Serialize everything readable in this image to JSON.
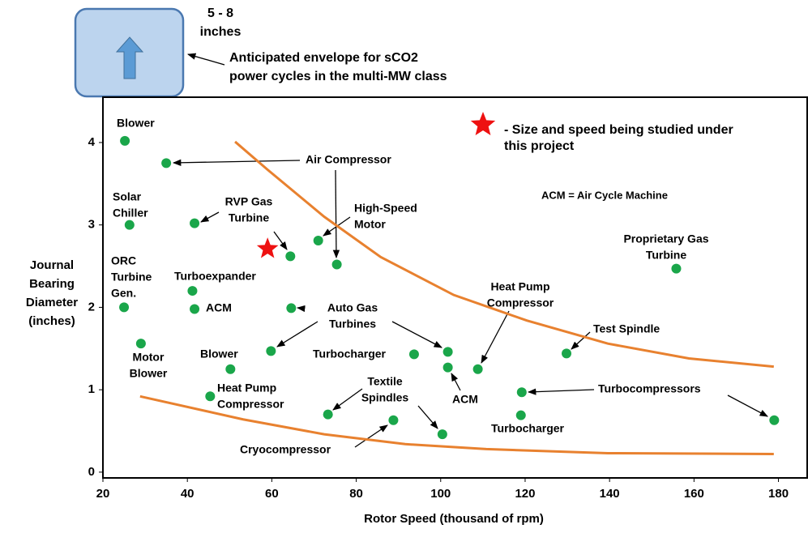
{
  "chart_data": {
    "type": "scatter",
    "x_label": "Rotor Speed (thousand of rpm)",
    "y_label": [
      "Journal",
      "Bearing",
      "Diameter",
      "(inches)"
    ],
    "xlim": [
      20,
      187
    ],
    "ylim": [
      -0.07,
      4.55
    ],
    "xticks": [
      20,
      40,
      60,
      80,
      100,
      120,
      140,
      160,
      180
    ],
    "yticks": [
      0,
      1,
      2,
      3,
      4
    ],
    "grid": false,
    "point_color": "#1aa64a",
    "x": [
      25.2,
      35,
      26.3,
      41.7,
      25,
      41.2,
      41.7,
      29,
      50.2,
      45.4,
      59.8,
      64.6,
      64.4,
      71,
      75.4,
      73.3,
      88.8,
      100.4,
      93.7,
      101.7,
      101.7,
      108.8,
      119.2,
      119,
      129.8,
      155.8,
      179
    ],
    "y": [
      4.02,
      3.75,
      3.0,
      3.02,
      2.0,
      2.2,
      1.98,
      1.56,
      1.25,
      0.92,
      1.47,
      1.99,
      2.62,
      2.81,
      2.52,
      0.7,
      0.63,
      0.46,
      1.43,
      1.46,
      1.27,
      1.25,
      0.97,
      0.69,
      1.44,
      2.47,
      0.63
    ],
    "star": {
      "x": 59,
      "y": 2.71,
      "color": "#ee1111"
    },
    "curves": [
      {
        "color": "#e8812f",
        "x": [
          51.3,
          59,
          72.4,
          85.8,
          103.1,
          120.4,
          139.6,
          158.8,
          178.9
        ],
        "y": [
          4.01,
          3.67,
          3.1,
          2.61,
          2.15,
          1.84,
          1.56,
          1.38,
          1.28
        ]
      },
      {
        "color": "#e8812f",
        "x": [
          28.8,
          53.2,
          72.4,
          91.6,
          110.8,
          139.6,
          178.9
        ],
        "y": [
          0.92,
          0.64,
          0.46,
          0.34,
          0.28,
          0.23,
          0.22
        ]
      }
    ],
    "annotations": [
      [
        "Blower"
      ],
      [
        "Air Compressor"
      ],
      [
        "Solar",
        "Chiller"
      ],
      [
        "RVP Gas",
        "Turbine"
      ],
      [
        "High-Speed",
        "Motor"
      ],
      [
        "ORC",
        "Turbine",
        "Gen."
      ],
      [
        "Turboexpander"
      ],
      [
        "ACM"
      ],
      [
        "Auto Gas",
        "Turbines"
      ],
      [
        "Motor",
        "Blower"
      ],
      [
        "Blower"
      ],
      [
        "Heat Pump",
        "Compressor"
      ],
      [
        "Textile",
        "Spindles"
      ],
      [
        "Turbocharger"
      ],
      [
        "ACM"
      ],
      [
        "Heat Pump",
        "Compressor"
      ],
      [
        "Test Spindle"
      ],
      [
        "Proprietary Gas",
        "Turbine"
      ],
      [
        "Turbocompressors"
      ],
      [
        "Turbocharger"
      ],
      [
        "Cryocompressor"
      ],
      [
        "ACM = Air Cycle Machine"
      ],
      [
        "- Size and speed being studied under",
        "this project"
      ],
      [
        "5 - 8",
        "inches"
      ],
      [
        "Anticipated envelope for sCO2",
        "power cycles in the multi-MW class"
      ]
    ]
  }
}
